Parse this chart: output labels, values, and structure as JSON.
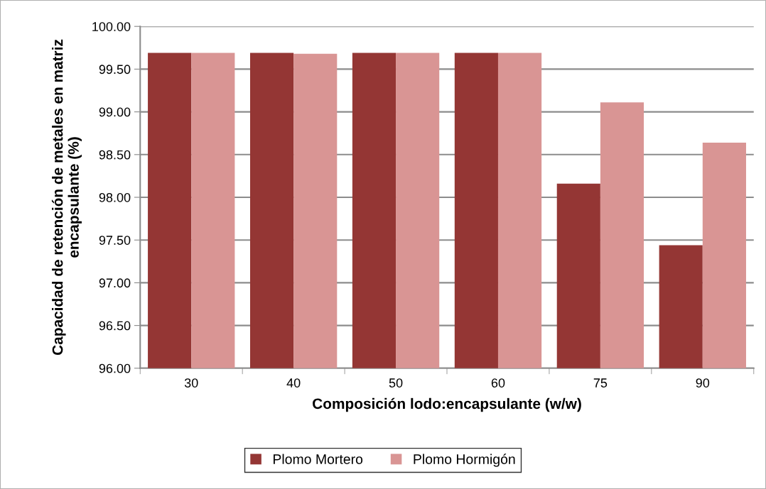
{
  "chart_data": {
    "type": "bar",
    "xlabel": "Composición lodo:encapsulante (w/w)",
    "ylabel": "Capacidad de retención de metales en matriz encapsulante (%)",
    "categories": [
      "30",
      "40",
      "50",
      "60",
      "75",
      "90"
    ],
    "series": [
      {
        "name": "Plomo Mortero",
        "color": "#943634",
        "values": [
          99.69,
          99.69,
          99.69,
          99.69,
          98.16,
          97.44
        ]
      },
      {
        "name": "Plomo Hormigón",
        "color": "#d99594",
        "values": [
          99.69,
          99.68,
          99.69,
          99.69,
          99.11,
          98.64
        ]
      }
    ],
    "ylim": [
      96,
      100
    ],
    "yticks": [
      {
        "value": 96,
        "label": "96.00"
      },
      {
        "value": 96.5,
        "label": "96.50"
      },
      {
        "value": 97,
        "label": "97.00"
      },
      {
        "value": 97.5,
        "label": "97.50"
      },
      {
        "value": 98,
        "label": "98.00"
      },
      {
        "value": 98.5,
        "label": "98.50"
      },
      {
        "value": 99,
        "label": "99.00"
      },
      {
        "value": 99.5,
        "label": "99.50"
      },
      {
        "value": 100,
        "label": "100.00"
      }
    ],
    "grid": "y",
    "legend": "bottom"
  }
}
